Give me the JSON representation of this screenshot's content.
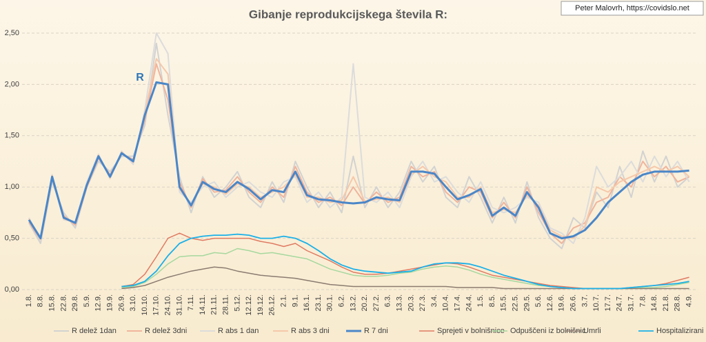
{
  "chart_data": {
    "type": "line",
    "title": "Gibanje reprodukcijskega števila R:",
    "source": "Peter Malovrh, https://covidslo.net",
    "annotation": "R",
    "categories": [
      "1.8.",
      "8.8.",
      "15.8.",
      "22.8.",
      "29.8.",
      "5.9.",
      "12.9.",
      "19.9.",
      "26.9.",
      "3.10.",
      "10.10.",
      "17.10.",
      "24.10.",
      "31.10.",
      "7.11.",
      "14.11.",
      "21.11.",
      "28.11.",
      "5.12.",
      "12.12.",
      "19.12.",
      "26.12.",
      "2.1.",
      "9.1.",
      "16.1.",
      "23.1.",
      "30.1.",
      "6.2.",
      "13.2.",
      "20.2.",
      "27.2.",
      "6.3.",
      "13.3.",
      "20.3.",
      "27.3.",
      "3.4.",
      "10.4.",
      "17.4.",
      "24.4.",
      "1.5.",
      "8.5.",
      "15.5.",
      "22.5.",
      "29.5.",
      "5.6.",
      "12.6.",
      "19.6.",
      "26.6.",
      "3.7.",
      "10.7.",
      "17.7.",
      "24.7.",
      "31.7.",
      "7.8.",
      "14.8.",
      "21.8.",
      "28.8.",
      "4.9."
    ],
    "ylim": [
      0,
      2.5
    ],
    "yticks": [
      {
        "value": 0,
        "label": "0,00"
      },
      {
        "value": 0.5,
        "label": "0,50"
      },
      {
        "value": 1,
        "label": "1,00"
      },
      {
        "value": 1.5,
        "label": "1,50"
      },
      {
        "value": 2,
        "label": "2,00"
      },
      {
        "value": 2.5,
        "label": "2,50"
      }
    ],
    "grid": true,
    "legend_position": "bottom",
    "series": [
      {
        "name": "R delež 1dan",
        "color": "#d2d2d2",
        "width": 2,
        "values": [
          0.65,
          0.45,
          1.05,
          0.75,
          0.6,
          1.0,
          1.25,
          1.15,
          1.3,
          1.3,
          1.6,
          2.4,
          1.7,
          1.1,
          0.75,
          1.1,
          0.9,
          1.0,
          1.15,
          0.9,
          0.8,
          1.05,
          0.85,
          1.25,
          1.0,
          0.8,
          0.95,
          0.75,
          1.3,
          0.8,
          1.0,
          0.8,
          0.95,
          1.25,
          1.05,
          1.2,
          0.9,
          0.8,
          1.1,
          0.9,
          0.65,
          0.9,
          0.65,
          1.05,
          0.7,
          0.5,
          0.4,
          0.7,
          0.6,
          0.95,
          0.8,
          1.2,
          0.9,
          1.35,
          1.05,
          1.3,
          1.0,
          1.1
        ]
      },
      {
        "name": "R delež 3dni",
        "color": "#f0b49c",
        "width": 2,
        "values": [
          0.66,
          0.48,
          1.08,
          0.72,
          0.63,
          1.0,
          1.28,
          1.12,
          1.32,
          1.27,
          1.65,
          2.2,
          1.85,
          1.05,
          0.8,
          1.08,
          0.95,
          0.97,
          1.1,
          0.95,
          0.85,
          1.0,
          0.9,
          1.2,
          0.95,
          0.85,
          0.9,
          0.82,
          1.0,
          0.84,
          0.95,
          0.85,
          0.9,
          1.2,
          1.1,
          1.15,
          0.95,
          0.85,
          1.0,
          0.95,
          0.7,
          0.85,
          0.7,
          1.0,
          0.75,
          0.55,
          0.45,
          0.6,
          0.65,
          0.85,
          0.9,
          1.1,
          1.0,
          1.25,
          1.1,
          1.2,
          1.05,
          1.1
        ]
      },
      {
        "name": "R abs 1 dan",
        "color": "#dcdcdc",
        "width": 2,
        "values": [
          0.7,
          0.48,
          1.12,
          0.68,
          0.66,
          1.05,
          1.32,
          1.08,
          1.35,
          1.22,
          1.75,
          2.5,
          2.3,
          0.95,
          0.85,
          1.0,
          1.05,
          0.9,
          1.0,
          1.05,
          0.95,
          0.9,
          1.05,
          1.1,
          0.85,
          0.95,
          0.8,
          0.9,
          2.2,
          0.9,
          0.85,
          0.95,
          0.8,
          1.1,
          1.25,
          1.05,
          1.1,
          0.95,
          0.85,
          1.05,
          0.8,
          0.75,
          0.8,
          0.9,
          0.85,
          0.6,
          0.55,
          0.45,
          0.7,
          1.2,
          1.0,
          1.1,
          1.25,
          1.05,
          1.3,
          1.1,
          1.25,
          1.05
        ]
      },
      {
        "name": "R abs 3 dni",
        "color": "#f6c8aa",
        "width": 2,
        "values": [
          0.69,
          0.49,
          1.11,
          0.69,
          0.65,
          1.03,
          1.31,
          1.09,
          1.34,
          1.24,
          1.72,
          2.25,
          2.1,
          0.98,
          0.83,
          1.03,
          1.0,
          0.93,
          1.03,
          1.0,
          0.9,
          0.95,
          1.0,
          1.12,
          0.9,
          0.9,
          0.85,
          0.87,
          1.1,
          0.86,
          0.88,
          0.9,
          0.85,
          1.12,
          1.2,
          1.1,
          1.05,
          0.9,
          0.9,
          1.0,
          0.75,
          0.78,
          0.75,
          0.92,
          0.82,
          0.58,
          0.52,
          0.5,
          0.62,
          1.0,
          0.95,
          1.05,
          1.1,
          1.15,
          1.2,
          1.15,
          1.2,
          1.1
        ]
      },
      {
        "name": "R 7 dni",
        "color": "#4a86c8",
        "width": 3,
        "values": [
          0.68,
          0.5,
          1.1,
          0.7,
          0.65,
          1.02,
          1.3,
          1.1,
          1.33,
          1.25,
          1.7,
          2.02,
          2.0,
          1.0,
          0.82,
          1.05,
          0.98,
          0.95,
          1.05,
          0.98,
          0.88,
          0.97,
          0.95,
          1.15,
          0.92,
          0.88,
          0.87,
          0.85,
          0.84,
          0.85,
          0.9,
          0.88,
          0.87,
          1.15,
          1.15,
          1.13,
          1.0,
          0.88,
          0.92,
          0.98,
          0.72,
          0.8,
          0.72,
          0.95,
          0.8,
          0.55,
          0.5,
          0.52,
          0.58,
          0.7,
          0.85,
          0.95,
          1.05,
          1.12,
          1.15,
          1.15,
          1.15,
          1.16
        ]
      },
      {
        "name": "Sprejeti v bolnišnice",
        "color": "#e07a62",
        "width": 1.5,
        "values": [
          null,
          null,
          null,
          null,
          null,
          null,
          null,
          null,
          0.03,
          0.05,
          0.15,
          0.32,
          0.5,
          0.55,
          0.5,
          0.48,
          0.5,
          0.5,
          0.5,
          0.5,
          0.47,
          0.45,
          0.42,
          0.45,
          0.38,
          0.33,
          0.28,
          0.22,
          0.17,
          0.15,
          0.15,
          0.16,
          0.18,
          0.2,
          0.22,
          0.24,
          0.26,
          0.25,
          0.22,
          0.18,
          0.14,
          0.12,
          0.1,
          0.08,
          0.06,
          0.04,
          0.03,
          0.02,
          0.01,
          0.01,
          0.01,
          0.01,
          0.02,
          0.03,
          0.04,
          0.06,
          0.09,
          0.12
        ]
      },
      {
        "name": "Odpuščeni iz bolnišnic",
        "color": "#a6d89e",
        "width": 1.5,
        "values": [
          null,
          null,
          null,
          null,
          null,
          null,
          null,
          null,
          0.02,
          0.03,
          0.07,
          0.15,
          0.25,
          0.32,
          0.33,
          0.33,
          0.36,
          0.35,
          0.4,
          0.38,
          0.35,
          0.36,
          0.34,
          0.32,
          0.3,
          0.25,
          0.2,
          0.17,
          0.14,
          0.13,
          0.13,
          0.14,
          0.16,
          0.17,
          0.2,
          0.22,
          0.23,
          0.22,
          0.19,
          0.15,
          0.12,
          0.1,
          0.08,
          0.06,
          0.04,
          0.03,
          0.02,
          0.01,
          0.01,
          0.01,
          0.01,
          0.01,
          0.01,
          0.02,
          0.02,
          0.03,
          0.05,
          0.07
        ]
      },
      {
        "name": "Umrli",
        "color": "#8b7b70",
        "width": 1.5,
        "values": [
          null,
          null,
          null,
          null,
          null,
          null,
          null,
          null,
          0.01,
          0.02,
          0.04,
          0.08,
          0.12,
          0.15,
          0.18,
          0.2,
          0.22,
          0.21,
          0.18,
          0.16,
          0.14,
          0.13,
          0.12,
          0.11,
          0.09,
          0.07,
          0.05,
          0.04,
          0.03,
          0.03,
          0.03,
          0.03,
          0.03,
          0.03,
          0.03,
          0.03,
          0.03,
          0.02,
          0.02,
          0.02,
          0.02,
          0.01,
          0.01,
          0.01,
          0.01,
          0.01,
          0.01,
          0.01,
          0.01,
          0.01,
          0.01,
          0.01,
          0.01,
          0.01,
          0.01,
          0.01,
          0.01,
          0.01
        ]
      },
      {
        "name": "Hospitalizirani",
        "color": "#1ab0e8",
        "width": 1.8,
        "values": [
          null,
          null,
          null,
          null,
          null,
          null,
          null,
          null,
          0.03,
          0.04,
          0.08,
          0.18,
          0.33,
          0.45,
          0.5,
          0.52,
          0.53,
          0.53,
          0.54,
          0.53,
          0.5,
          0.5,
          0.52,
          0.5,
          0.45,
          0.38,
          0.3,
          0.24,
          0.2,
          0.18,
          0.17,
          0.16,
          0.17,
          0.18,
          0.22,
          0.25,
          0.26,
          0.26,
          0.25,
          0.22,
          0.18,
          0.14,
          0.11,
          0.08,
          0.05,
          0.03,
          0.02,
          0.01,
          0.01,
          0.01,
          0.01,
          0.01,
          0.02,
          0.03,
          0.04,
          0.05,
          0.06,
          0.08
        ]
      }
    ]
  }
}
